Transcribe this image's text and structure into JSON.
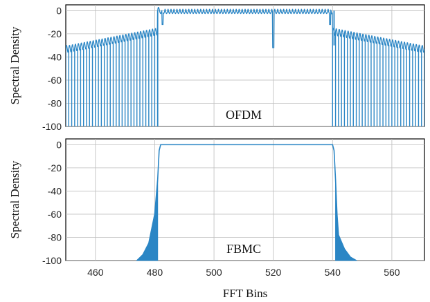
{
  "chart_data": [
    {
      "type": "line",
      "panel": "top",
      "annotation": "OFDM",
      "ylabel": "Spectral Density",
      "xlabel": "",
      "xlim": [
        450,
        571
      ],
      "ylim": [
        -100,
        5
      ],
      "xticks": [
        460,
        480,
        500,
        520,
        540,
        560
      ],
      "yticks": [
        0,
        -20,
        -40,
        -60,
        -80,
        -100
      ],
      "grid": true,
      "color": "#2b86c5",
      "series": [
        {
          "x": [
            450,
            455,
            460,
            465,
            470,
            475,
            478,
            480,
            481,
            482,
            490,
            500,
            510,
            519,
            520,
            521,
            530,
            539,
            540,
            541,
            542,
            545,
            550,
            555,
            560,
            565,
            571
          ],
          "values": [
            -33,
            -32,
            -31,
            -30,
            -29,
            -27,
            -23,
            -18,
            -100,
            0,
            1,
            2,
            1,
            1,
            -32,
            1,
            1,
            0,
            0,
            -30,
            -18,
            -23,
            -27,
            -29,
            -31,
            -32,
            -33
          ]
        }
      ],
      "notches_bottom": [
        [
          450,
          481
        ],
        [
          540,
          571
        ]
      ]
    },
    {
      "type": "area",
      "panel": "bottom",
      "annotation": "FBMC",
      "ylabel": "Spectral Density",
      "xlabel": "FFT Bins",
      "xlim": [
        450,
        571
      ],
      "ylim": [
        -100,
        5
      ],
      "xticks": [
        460,
        480,
        500,
        520,
        540,
        560
      ],
      "yticks": [
        0,
        -20,
        -40,
        -60,
        -80,
        -100
      ],
      "grid": true,
      "color": "#2b86c5",
      "series": [
        {
          "x": [
            474,
            476,
            478,
            480,
            481,
            481.5,
            482,
            540,
            540.5,
            541,
            541.5,
            542,
            544,
            546,
            548
          ],
          "values": [
            -100,
            -95,
            -85,
            -60,
            -30,
            -5,
            0,
            0,
            -5,
            -30,
            -60,
            -78,
            -90,
            -97,
            -100
          ]
        }
      ]
    }
  ]
}
